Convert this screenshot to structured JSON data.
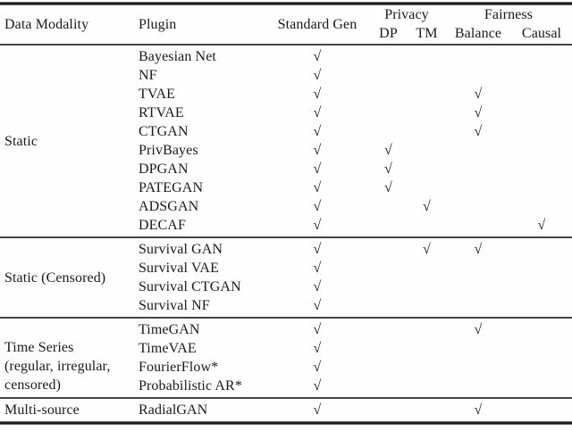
{
  "table": {
    "header": {
      "data_modality": "Data Modality",
      "plugin": "Plugin",
      "standard_gen": "Standard Gen",
      "privacy": "Privacy",
      "dp": "DP",
      "tm": "TM",
      "fairness": "Fairness",
      "balance": "Balance",
      "causal": "Causal"
    },
    "groups": [
      {
        "modality_lines": [
          "Static"
        ],
        "rows": [
          {
            "plugin": "Bayesian Net",
            "checks": {
              "standard_gen": "√"
            }
          },
          {
            "plugin": "NF",
            "checks": {
              "standard_gen": "√"
            }
          },
          {
            "plugin": "TVAE",
            "checks": {
              "standard_gen": "√",
              "balance": "√"
            }
          },
          {
            "plugin": "RTVAE",
            "checks": {
              "standard_gen": "√",
              "balance": "√"
            }
          },
          {
            "plugin": "CTGAN",
            "checks": {
              "standard_gen": "√",
              "balance": "√"
            }
          },
          {
            "plugin": "PrivBayes",
            "checks": {
              "standard_gen": "√",
              "dp": "√"
            }
          },
          {
            "plugin": "DPGAN",
            "checks": {
              "standard_gen": "√",
              "dp": "√"
            }
          },
          {
            "plugin": "PATEGAN",
            "checks": {
              "standard_gen": "√",
              "dp": "√"
            }
          },
          {
            "plugin": "ADSGAN",
            "checks": {
              "standard_gen": "√",
              "tm": "√"
            }
          },
          {
            "plugin": "DECAF",
            "checks": {
              "standard_gen": "√",
              "causal": "√"
            }
          }
        ]
      },
      {
        "modality_lines": [
          "Static (Censored)"
        ],
        "rows": [
          {
            "plugin": "Survival GAN",
            "checks": {
              "standard_gen": "√",
              "tm": "√",
              "balance": "√"
            }
          },
          {
            "plugin": "Survival VAE",
            "checks": {
              "standard_gen": "√"
            }
          },
          {
            "plugin": "Survival CTGAN",
            "checks": {
              "standard_gen": "√"
            }
          },
          {
            "plugin": "Survival NF",
            "checks": {
              "standard_gen": "√"
            }
          }
        ]
      },
      {
        "modality_lines": [
          "Time Series",
          "(regular, irregular,",
          "censored)"
        ],
        "rows": [
          {
            "plugin": "TimeGAN",
            "checks": {
              "standard_gen": "√",
              "balance": "√"
            }
          },
          {
            "plugin": "TimeVAE",
            "checks": {
              "standard_gen": "√"
            }
          },
          {
            "plugin": "FourierFlow*",
            "checks": {
              "standard_gen": "√"
            }
          },
          {
            "plugin": "Probabilistic AR*",
            "checks": {
              "standard_gen": "√"
            }
          }
        ]
      },
      {
        "modality_lines": [
          "Multi-source"
        ],
        "rows": [
          {
            "plugin": "RadialGAN",
            "checks": {
              "standard_gen": "√",
              "balance": "√"
            }
          }
        ]
      }
    ]
  }
}
